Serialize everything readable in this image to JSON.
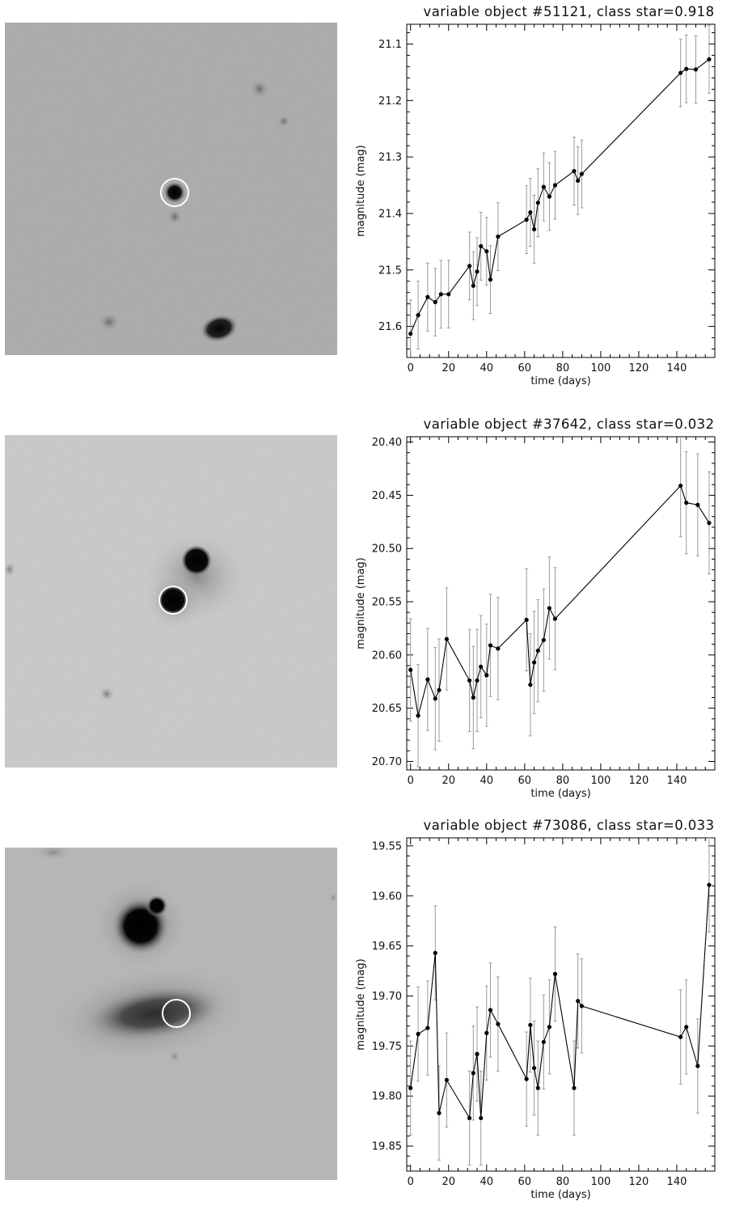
{
  "colors": {
    "axis": "#000000",
    "errorbar": "#9a9a9a",
    "series": "#000000",
    "aperture": "#ffffff"
  },
  "figure": {
    "panels": [
      {
        "thumbnail_icon": "galaxy-cutout-image",
        "aperture_icon": "white-aperture-circle",
        "xticks": [
          "0",
          "20",
          "40",
          "60",
          "80",
          "100",
          "120",
          "140"
        ],
        "yticks": [
          "21.1",
          "21.2",
          "21.3",
          "21.4",
          "21.5",
          "21.6"
        ]
      },
      {
        "thumbnail_icon": "galaxy-cutout-image",
        "aperture_icon": "white-aperture-circle",
        "xticks": [
          "0",
          "20",
          "40",
          "60",
          "80",
          "100",
          "120",
          "140"
        ],
        "yticks": [
          "20.40",
          "20.45",
          "20.50",
          "20.55",
          "20.60",
          "20.65",
          "20.70"
        ]
      },
      {
        "thumbnail_icon": "galaxy-cutout-image",
        "aperture_icon": "white-aperture-circle",
        "xticks": [
          "0",
          "20",
          "40",
          "60",
          "80",
          "100",
          "120",
          "140"
        ],
        "yticks": [
          "19.55",
          "19.60",
          "19.65",
          "19.70",
          "19.75",
          "19.80",
          "19.85"
        ]
      }
    ]
  },
  "chart_data": [
    {
      "type": "line",
      "title": "variable object #51121, class star=0.918",
      "xlabel": "time (days)",
      "ylabel": "magnitude (mag)",
      "xlim": [
        -2,
        160
      ],
      "ylim": [
        21.655,
        21.065
      ],
      "y_inverted": true,
      "grid": false,
      "series": [
        {
          "x": [
            0,
            4,
            9,
            13,
            16,
            20,
            31,
            33,
            35,
            37,
            40,
            42,
            46,
            61,
            63,
            65,
            67,
            70,
            73,
            76,
            86,
            88,
            90,
            142,
            145,
            150,
            157
          ],
          "y": [
            21.613,
            21.58,
            21.548,
            21.557,
            21.543,
            21.543,
            21.493,
            21.528,
            21.503,
            21.458,
            21.467,
            21.517,
            21.441,
            21.411,
            21.398,
            21.428,
            21.381,
            21.353,
            21.37,
            21.35,
            21.325,
            21.342,
            21.33,
            21.151,
            21.144,
            21.145,
            21.127
          ],
          "yerr": [
            0.06,
            0.06,
            0.06,
            0.06,
            0.06,
            0.06,
            0.06,
            0.06,
            0.06,
            0.06,
            0.06,
            0.06,
            0.06,
            0.06,
            0.06,
            0.06,
            0.06,
            0.06,
            0.06,
            0.06,
            0.06,
            0.06,
            0.06,
            0.06,
            0.06,
            0.06,
            0.06
          ]
        }
      ]
    },
    {
      "type": "line",
      "title": "variable object #37642, class star=0.032",
      "xlabel": "time (days)",
      "ylabel": "magnitude (mag)",
      "xlim": [
        -2,
        160
      ],
      "ylim": [
        20.708,
        20.395
      ],
      "y_inverted": true,
      "grid": false,
      "series": [
        {
          "x": [
            0,
            4,
            9,
            13,
            15,
            19,
            31,
            33,
            35,
            37,
            40,
            42,
            46,
            61,
            63,
            65,
            67,
            70,
            73,
            76,
            142,
            145,
            151,
            157
          ],
          "y": [
            20.614,
            20.657,
            20.623,
            20.641,
            20.633,
            20.585,
            20.624,
            20.64,
            20.624,
            20.611,
            20.619,
            20.591,
            20.594,
            20.567,
            20.628,
            20.607,
            20.596,
            20.586,
            20.556,
            20.566,
            20.441,
            20.457,
            20.459,
            20.476
          ],
          "yerr": [
            0.048,
            0.048,
            0.048,
            0.048,
            0.048,
            0.048,
            0.048,
            0.048,
            0.048,
            0.048,
            0.048,
            0.048,
            0.048,
            0.048,
            0.048,
            0.048,
            0.048,
            0.048,
            0.048,
            0.048,
            0.048,
            0.048,
            0.048,
            0.048
          ]
        }
      ]
    },
    {
      "type": "line",
      "title": "variable object #73086, class star=0.033",
      "xlabel": "time (days)",
      "ylabel": "magnitude (mag)",
      "xlim": [
        -2,
        160
      ],
      "ylim": [
        19.875,
        19.542
      ],
      "y_inverted": true,
      "grid": false,
      "series": [
        {
          "x": [
            0,
            4,
            9,
            13,
            15,
            19,
            31,
            33,
            35,
            37,
            40,
            42,
            46,
            61,
            63,
            65,
            67,
            70,
            73,
            76,
            86,
            88,
            90,
            142,
            145,
            151,
            157
          ],
          "y": [
            19.792,
            19.738,
            19.732,
            19.657,
            19.817,
            19.784,
            19.822,
            19.777,
            19.758,
            19.822,
            19.737,
            19.714,
            19.728,
            19.783,
            19.729,
            19.772,
            19.792,
            19.746,
            19.731,
            19.678,
            19.792,
            19.705,
            19.71,
            19.741,
            19.731,
            19.77,
            19.589
          ],
          "yerr": [
            0.047,
            0.047,
            0.047,
            0.047,
            0.047,
            0.047,
            0.047,
            0.047,
            0.047,
            0.047,
            0.047,
            0.047,
            0.047,
            0.047,
            0.047,
            0.047,
            0.047,
            0.047,
            0.047,
            0.047,
            0.047,
            0.047,
            0.047,
            0.047,
            0.047,
            0.047,
            0.047
          ]
        }
      ]
    }
  ]
}
